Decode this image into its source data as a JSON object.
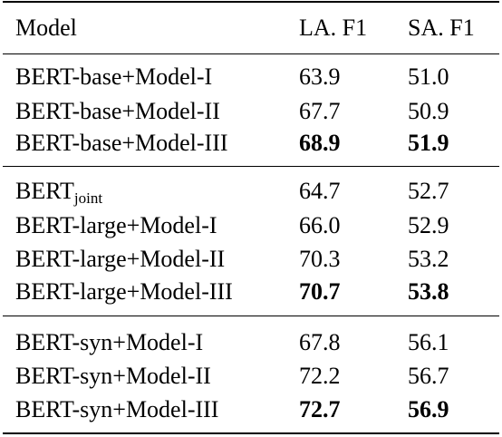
{
  "table": {
    "header": {
      "model": "Model",
      "la_f1": "LA. F1",
      "sa_f1": "SA. F1"
    },
    "groups": [
      {
        "rows": [
          {
            "model": "BERT-base+Model-I",
            "la": "63.9",
            "sa": "51.0"
          },
          {
            "model": "BERT-base+Model-II",
            "la": "67.7",
            "sa": "50.9"
          },
          {
            "model": "BERT-base+Model-III",
            "la": "68.9",
            "sa": "51.9",
            "best": true
          }
        ]
      },
      {
        "rows": [
          {
            "model": "BERT",
            "model_sub": "joint",
            "la": "64.7",
            "sa": "52.7"
          },
          {
            "model": "BERT-large+Model-I",
            "la": "66.0",
            "sa": "52.9"
          },
          {
            "model": "BERT-large+Model-II",
            "la": "70.3",
            "sa": "53.2"
          },
          {
            "model": "BERT-large+Model-III",
            "la": "70.7",
            "sa": "53.8",
            "best": true
          }
        ]
      },
      {
        "rows": [
          {
            "model": "BERT-syn+Model-I",
            "la": "67.8",
            "sa": "56.1"
          },
          {
            "model": "BERT-syn+Model-II",
            "la": "72.2",
            "sa": "56.7"
          },
          {
            "model": "BERT-syn+Model-III",
            "la": "72.7",
            "sa": "56.9",
            "best": true
          }
        ]
      }
    ]
  }
}
